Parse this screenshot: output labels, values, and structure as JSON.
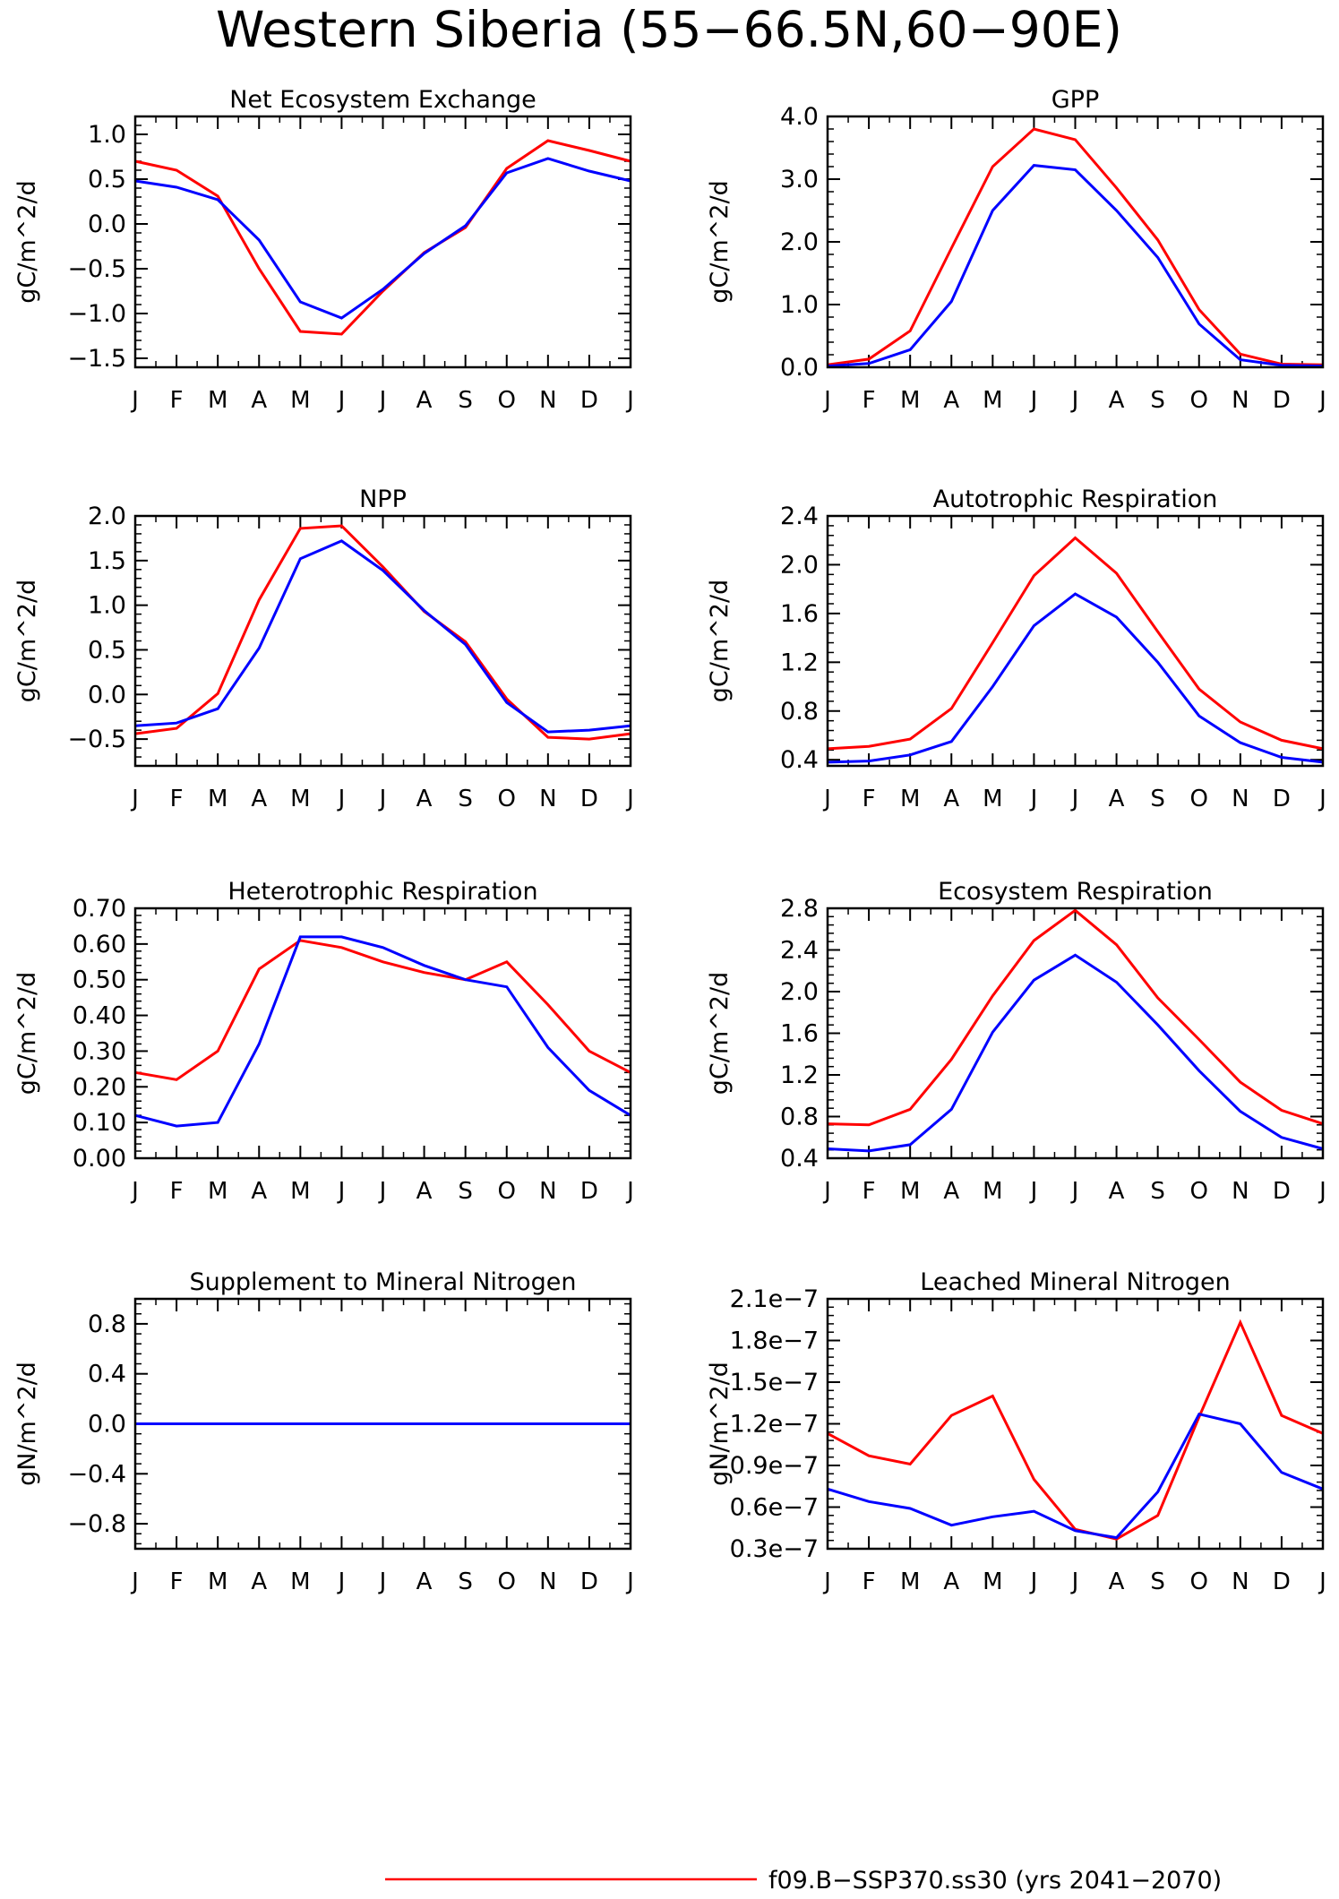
{
  "figure": {
    "title": "Western Siberia (55−66.5N,60−90E)",
    "series_colors": [
      "#ff0000",
      "#0000ff"
    ],
    "legend": [
      {
        "label": "f09.B−SSP370.ss30 (yrs 2041−2070)",
        "color": "#ff0000"
      }
    ]
  },
  "chart_data": [
    {
      "type": "line",
      "title": "Net Ecosystem Exchange",
      "ylabel": "gC/m^2/d",
      "categories": [
        "J",
        "F",
        "M",
        "A",
        "M",
        "J",
        "J",
        "A",
        "S",
        "O",
        "N",
        "D",
        "J"
      ],
      "ylim": [
        -1.6,
        1.2
      ],
      "yticks": [
        -1.5,
        -1.0,
        -0.5,
        0.0,
        0.5,
        1.0
      ],
      "yticklabels": [
        "−1.5",
        "−1.0",
        "−0.5",
        "0.0",
        "0.5",
        "1.0"
      ],
      "series": [
        {
          "color": "#ff0000",
          "values": [
            0.7,
            0.6,
            0.31,
            -0.5,
            -1.2,
            -1.23,
            -0.75,
            -0.32,
            -0.04,
            0.62,
            0.93,
            0.82,
            0.7
          ]
        },
        {
          "color": "#0000ff",
          "values": [
            0.48,
            0.41,
            0.27,
            -0.18,
            -0.87,
            -1.05,
            -0.73,
            -0.33,
            -0.02,
            0.57,
            0.73,
            0.59,
            0.48
          ]
        }
      ]
    },
    {
      "type": "line",
      "title": "GPP",
      "ylabel": "gC/m^2/d",
      "categories": [
        "J",
        "F",
        "M",
        "A",
        "M",
        "J",
        "J",
        "A",
        "S",
        "O",
        "N",
        "D",
        "J"
      ],
      "ylim": [
        0.0,
        4.0
      ],
      "yticks": [
        0.0,
        1.0,
        2.0,
        3.0,
        4.0
      ],
      "yticklabels": [
        "0.0",
        "1.0",
        "2.0",
        "3.0",
        "4.0"
      ],
      "series": [
        {
          "color": "#ff0000",
          "values": [
            0.04,
            0.13,
            0.58,
            1.9,
            3.2,
            3.8,
            3.63,
            2.86,
            2.03,
            0.92,
            0.21,
            0.05,
            0.04
          ]
        },
        {
          "color": "#0000ff",
          "values": [
            0.02,
            0.06,
            0.28,
            1.05,
            2.5,
            3.22,
            3.15,
            2.5,
            1.75,
            0.69,
            0.12,
            0.03,
            0.02
          ]
        }
      ]
    },
    {
      "type": "line",
      "title": "NPP",
      "ylabel": "gC/m^2/d",
      "categories": [
        "J",
        "F",
        "M",
        "A",
        "M",
        "J",
        "J",
        "A",
        "S",
        "O",
        "N",
        "D",
        "J"
      ],
      "ylim": [
        -0.8,
        2.0
      ],
      "yticks": [
        -0.5,
        0.0,
        0.5,
        1.0,
        1.5,
        2.0
      ],
      "yticklabels": [
        "−0.5",
        "0.0",
        "0.5",
        "1.0",
        "1.5",
        "2.0"
      ],
      "series": [
        {
          "color": "#ff0000",
          "values": [
            -0.44,
            -0.38,
            0.01,
            1.06,
            1.86,
            1.89,
            1.43,
            0.93,
            0.59,
            -0.05,
            -0.48,
            -0.5,
            -0.44
          ]
        },
        {
          "color": "#0000ff",
          "values": [
            -0.35,
            -0.32,
            -0.16,
            0.52,
            1.52,
            1.72,
            1.39,
            0.94,
            0.56,
            -0.09,
            -0.42,
            -0.4,
            -0.35
          ]
        }
      ]
    },
    {
      "type": "line",
      "title": "Autotrophic Respiration",
      "ylabel": "gC/m^2/d",
      "categories": [
        "J",
        "F",
        "M",
        "A",
        "M",
        "J",
        "J",
        "A",
        "S",
        "O",
        "N",
        "D",
        "J"
      ],
      "ylim": [
        0.35,
        2.4
      ],
      "yticks": [
        0.4,
        0.8,
        1.2,
        1.6,
        2.0,
        2.4
      ],
      "yticklabels": [
        "0.4",
        "0.8",
        "1.2",
        "1.6",
        "2.0",
        "2.4"
      ],
      "series": [
        {
          "color": "#ff0000",
          "values": [
            0.49,
            0.51,
            0.57,
            0.82,
            1.36,
            1.91,
            2.22,
            1.93,
            1.45,
            0.98,
            0.71,
            0.56,
            0.49
          ]
        },
        {
          "color": "#0000ff",
          "values": [
            0.38,
            0.39,
            0.44,
            0.55,
            1.0,
            1.5,
            1.76,
            1.57,
            1.2,
            0.76,
            0.54,
            0.42,
            0.38
          ]
        }
      ]
    },
    {
      "type": "line",
      "title": "Heterotrophic Respiration",
      "ylabel": "gC/m^2/d",
      "categories": [
        "J",
        "F",
        "M",
        "A",
        "M",
        "J",
        "J",
        "A",
        "S",
        "O",
        "N",
        "D",
        "J"
      ],
      "ylim": [
        0.0,
        0.7
      ],
      "yticks": [
        0.0,
        0.1,
        0.2,
        0.3,
        0.4,
        0.5,
        0.6,
        0.7
      ],
      "yticklabels": [
        "0.00",
        "0.10",
        "0.20",
        "0.30",
        "0.40",
        "0.50",
        "0.60",
        "0.70"
      ],
      "series": [
        {
          "color": "#ff0000",
          "values": [
            0.24,
            0.22,
            0.3,
            0.53,
            0.61,
            0.59,
            0.55,
            0.52,
            0.5,
            0.55,
            0.43,
            0.3,
            0.24
          ]
        },
        {
          "color": "#0000ff",
          "values": [
            0.12,
            0.09,
            0.1,
            0.32,
            0.62,
            0.62,
            0.59,
            0.54,
            0.5,
            0.48,
            0.31,
            0.19,
            0.12
          ]
        }
      ]
    },
    {
      "type": "line",
      "title": "Ecosystem Respiration",
      "ylabel": "gC/m^2/d",
      "categories": [
        "J",
        "F",
        "M",
        "A",
        "M",
        "J",
        "J",
        "A",
        "S",
        "O",
        "N",
        "D",
        "J"
      ],
      "ylim": [
        0.4,
        2.8
      ],
      "yticks": [
        0.4,
        0.8,
        1.2,
        1.6,
        2.0,
        2.4,
        2.8
      ],
      "yticklabels": [
        "0.4",
        "0.8",
        "1.2",
        "1.6",
        "2.0",
        "2.4",
        "2.8"
      ],
      "series": [
        {
          "color": "#ff0000",
          "values": [
            0.73,
            0.72,
            0.87,
            1.35,
            1.96,
            2.49,
            2.78,
            2.45,
            1.94,
            1.54,
            1.13,
            0.86,
            0.73
          ]
        },
        {
          "color": "#0000ff",
          "values": [
            0.49,
            0.47,
            0.53,
            0.87,
            1.61,
            2.11,
            2.35,
            2.09,
            1.68,
            1.24,
            0.85,
            0.6,
            0.49
          ]
        }
      ]
    },
    {
      "type": "line",
      "title": "Supplement to Mineral Nitrogen",
      "ylabel": "gN/m^2/d",
      "categories": [
        "J",
        "F",
        "M",
        "A",
        "M",
        "J",
        "J",
        "A",
        "S",
        "O",
        "N",
        "D",
        "J"
      ],
      "ylim": [
        -1.0,
        1.0
      ],
      "yticks": [
        -0.8,
        -0.4,
        0.0,
        0.4,
        0.8
      ],
      "yticklabels": [
        "−0.8",
        "−0.4",
        "0.0",
        "0.4",
        "0.8"
      ],
      "series": [
        {
          "color": "#ff0000",
          "values": [
            0,
            0,
            0,
            0,
            0,
            0,
            0,
            0,
            0,
            0,
            0,
            0,
            0
          ]
        },
        {
          "color": "#0000ff",
          "values": [
            0,
            0,
            0,
            0,
            0,
            0,
            0,
            0,
            0,
            0,
            0,
            0,
            0
          ]
        }
      ]
    },
    {
      "type": "line",
      "title": "Leached Mineral Nitrogen",
      "ylabel": "gN/m^2/d",
      "categories": [
        "J",
        "F",
        "M",
        "A",
        "M",
        "J",
        "J",
        "A",
        "S",
        "O",
        "N",
        "D",
        "J"
      ],
      "ylim": [
        3e-08,
        2.1e-07
      ],
      "yticks": [
        3e-08,
        6e-08,
        9e-08,
        1.2e-07,
        1.5e-07,
        1.8e-07,
        2.1e-07
      ],
      "yticklabels": [
        "0.3e−7",
        "0.6e−7",
        "0.9e−7",
        "1.2e−7",
        "1.5e−7",
        "1.8e−7",
        "2.1e−7"
      ],
      "series": [
        {
          "color": "#ff0000",
          "values": [
            1.13e-07,
            9.7e-08,
            9.1e-08,
            1.26e-07,
            1.4e-07,
            8e-08,
            4.4e-08,
            3.7e-08,
            5.4e-08,
            1.25e-07,
            1.93e-07,
            1.26e-07,
            1.13e-07
          ]
        },
        {
          "color": "#0000ff",
          "values": [
            7.3e-08,
            6.4e-08,
            5.9e-08,
            4.7e-08,
            5.3e-08,
            5.7e-08,
            4.3e-08,
            3.8e-08,
            7.1e-08,
            1.27e-07,
            1.2e-07,
            8.5e-08,
            7.3e-08
          ]
        }
      ]
    }
  ]
}
